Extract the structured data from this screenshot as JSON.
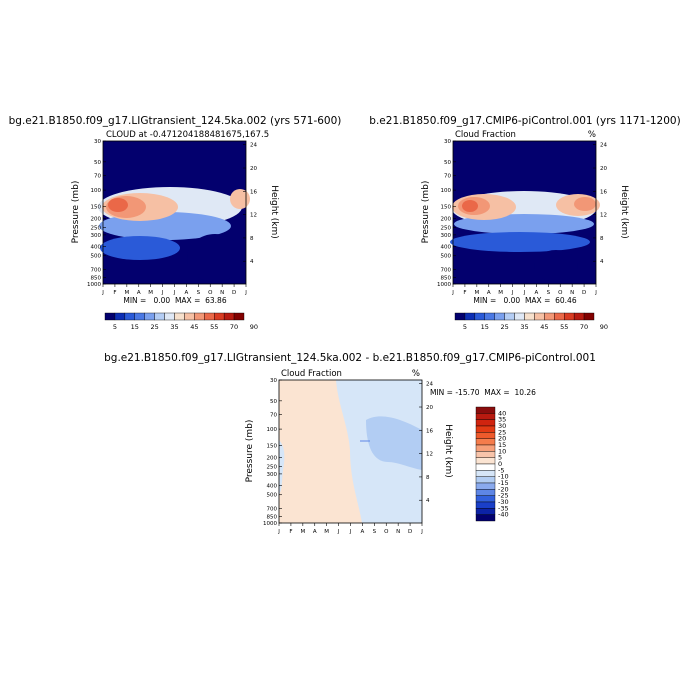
{
  "chart_data": [
    {
      "type": "heatmap",
      "title": "bg.e21.B1850.f09_g17.LIGtransient_124.5ka.002 (yrs 571-600)",
      "subtitle": "CLOUD at -0.471204188481675,167.5",
      "ylabel": "Pressure (mb)",
      "y2label": "Height (km)",
      "months": [
        "J",
        "F",
        "M",
        "A",
        "M",
        "J",
        "J",
        "A",
        "S",
        "O",
        "N",
        "D",
        "J"
      ],
      "pressure_ticks": [
        "30",
        "50",
        "70",
        "100",
        "150",
        "200",
        "250",
        "300",
        "400",
        "500",
        "700",
        "850",
        "1000"
      ],
      "height_ticks": [
        "24",
        "20",
        "16",
        "12",
        "8",
        "4"
      ],
      "minmax": "MIN =   0.00  MAX =  63.86",
      "min": 0.0,
      "max": 63.86,
      "colorbar_labels": [
        "5",
        "15",
        "25",
        "35",
        "45",
        "55",
        "70",
        "90"
      ],
      "colorbar_colors": [
        "#03006e",
        "#0c2eb4",
        "#2a5ad8",
        "#4a78e4",
        "#7aa0ee",
        "#b4cdf4",
        "#dfe8f5",
        "#f6e0cc",
        "#f6c0a4",
        "#f29776",
        "#ea6848",
        "#d93b22",
        "#b81a10",
        "#820000"
      ]
    },
    {
      "type": "heatmap",
      "title": "b.e21.B1850.f09_g17.CMIP6-piControl.001 (yrs 1171-1200)",
      "subtitle": "Cloud Fraction",
      "unit": "%",
      "ylabel": "Pressure (mb)",
      "y2label": "Height (km)",
      "months": [
        "J",
        "F",
        "M",
        "A",
        "M",
        "J",
        "J",
        "A",
        "S",
        "O",
        "N",
        "D",
        "J"
      ],
      "pressure_ticks": [
        "30",
        "50",
        "70",
        "100",
        "150",
        "200",
        "250",
        "300",
        "400",
        "500",
        "700",
        "850",
        "1000"
      ],
      "height_ticks": [
        "24",
        "20",
        "16",
        "12",
        "8",
        "4"
      ],
      "minmax": "MIN =   0.00  MAX =  60.46",
      "min": 0.0,
      "max": 60.46,
      "colorbar_labels": [
        "5",
        "15",
        "25",
        "35",
        "45",
        "55",
        "70",
        "90"
      ],
      "colorbar_colors": [
        "#03006e",
        "#0c2eb4",
        "#2a5ad8",
        "#4a78e4",
        "#7aa0ee",
        "#b4cdf4",
        "#dfe8f5",
        "#f6e0cc",
        "#f6c0a4",
        "#f29776",
        "#ea6848",
        "#d93b22",
        "#b81a10",
        "#820000"
      ]
    },
    {
      "type": "heatmap",
      "title": "bg.e21.B1850.f09_g17.LIGtransient_124.5ka.002 - b.e21.B1850.f09_g17.CMIP6-piControl.001",
      "subtitle": "Cloud Fraction",
      "unit": "%",
      "ylabel": "Pressure (mb)",
      "y2label": "Height (km)",
      "months": [
        "J",
        "F",
        "M",
        "A",
        "M",
        "J",
        "J",
        "A",
        "S",
        "O",
        "N",
        "D",
        "J"
      ],
      "pressure_ticks": [
        "30",
        "50",
        "70",
        "100",
        "150",
        "200",
        "250",
        "300",
        "400",
        "500",
        "700",
        "850",
        "1000"
      ],
      "height_ticks": [
        "24",
        "20",
        "16",
        "12",
        "8",
        "4"
      ],
      "minmax": "MIN = -15.70  MAX =  10.26",
      "min": -15.7,
      "max": 10.26,
      "colorbar_labels": [
        "40",
        "35",
        "30",
        "25",
        "20",
        "15",
        "10",
        "5",
        "0",
        "-5",
        "-10",
        "-15",
        "-20",
        "-25",
        "-30",
        "-35",
        "-40"
      ],
      "colorbar_colors": [
        "#8a0d0d",
        "#b81a10",
        "#d0240f",
        "#e23a14",
        "#ee5a2c",
        "#f57c4c",
        "#f7a07a",
        "#f8c4aa",
        "#fbe4d2",
        "#ffffff",
        "#d6e6f8",
        "#b2cdf3",
        "#8aaaee",
        "#5e86e6",
        "#3260dc",
        "#1a3fc8",
        "#0c22a6",
        "#03006e"
      ]
    }
  ]
}
